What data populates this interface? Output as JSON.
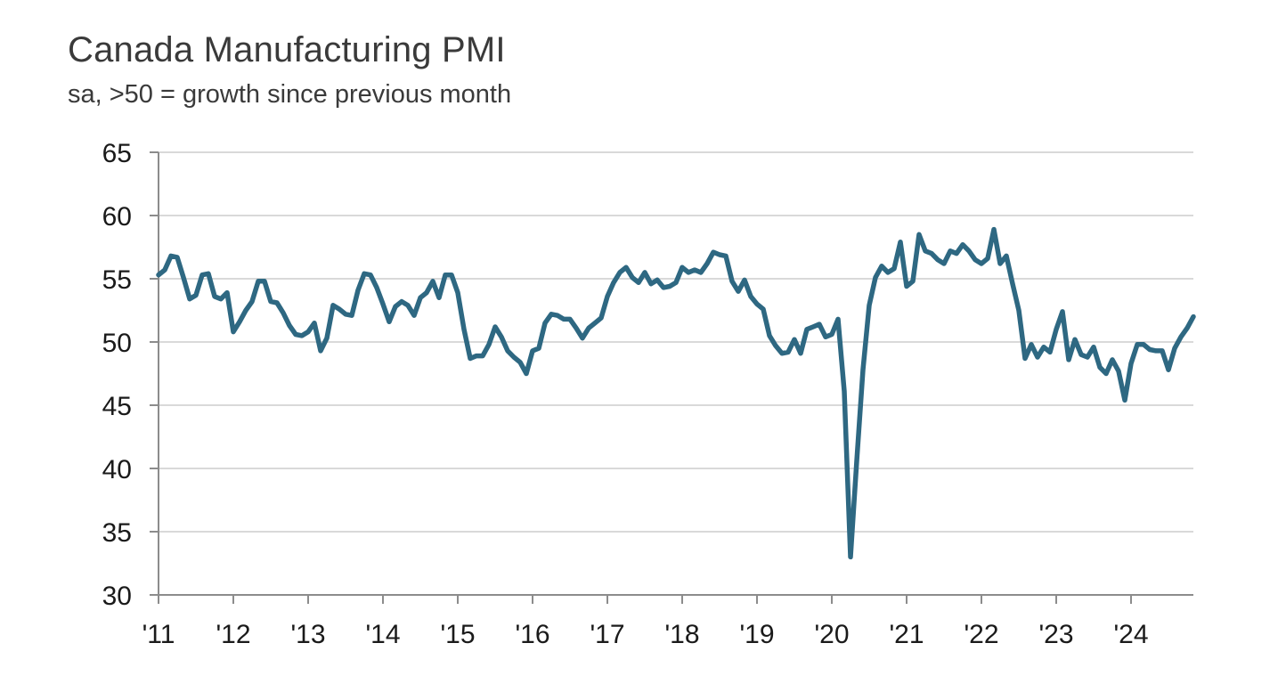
{
  "chart_data": {
    "type": "line",
    "title": "Canada Manufacturing PMI",
    "subtitle": "sa, >50 = growth since previous month",
    "xlabel": "",
    "ylabel": "",
    "ylim": [
      30,
      65
    ],
    "yticks": [
      30,
      35,
      40,
      45,
      50,
      55,
      60,
      65
    ],
    "xticks": [
      "'11",
      "'12",
      "'13",
      "'14",
      "'15",
      "'16",
      "'17",
      "'18",
      "'19",
      "'20",
      "'21",
      "'22",
      "'23",
      "'24"
    ],
    "x_start": "2011-01",
    "x_end": "2024-11",
    "grid": true,
    "colors": {
      "series": "#2e6882",
      "grid": "#d9d9d9",
      "axis": "#8c8c8c"
    },
    "series": [
      {
        "values": [
          55.3,
          55.7,
          56.8,
          56.7,
          55.1,
          53.4,
          53.7,
          55.3,
          55.4,
          53.6,
          53.4,
          53.9,
          50.8,
          51.6,
          52.5,
          53.2,
          54.8,
          54.8,
          53.2,
          53.1,
          52.3,
          51.3,
          50.6,
          50.5,
          50.8,
          51.5,
          49.3,
          50.3,
          52.9,
          52.6,
          52.2,
          52.1,
          54.1,
          55.4,
          55.3,
          54.3,
          53.0,
          51.6,
          52.8,
          53.2,
          52.9,
          52.1,
          53.5,
          53.9,
          54.8,
          53.5,
          55.3,
          55.3,
          53.9,
          51.0,
          48.7,
          48.9,
          48.9,
          49.8,
          51.2,
          50.4,
          49.3,
          48.8,
          48.4,
          47.5,
          49.3,
          49.5,
          51.5,
          52.2,
          52.1,
          51.8,
          51.8,
          51.1,
          50.3,
          51.1,
          51.5,
          51.9,
          53.6,
          54.7,
          55.5,
          55.9,
          55.1,
          54.7,
          55.5,
          54.6,
          54.9,
          54.3,
          54.4,
          54.7,
          55.9,
          55.5,
          55.7,
          55.5,
          56.2,
          57.1,
          56.9,
          56.8,
          54.8,
          54.0,
          54.9,
          53.6,
          53.0,
          52.6,
          50.5,
          49.7,
          49.1,
          49.2,
          50.2,
          49.1,
          51.0,
          51.2,
          51.4,
          50.4,
          50.6,
          51.8,
          46.1,
          33.0,
          40.6,
          47.8,
          52.9,
          55.1,
          56.0,
          55.5,
          55.8,
          57.9,
          54.4,
          54.8,
          58.5,
          57.2,
          57.0,
          56.5,
          56.2,
          57.2,
          57.0,
          57.7,
          57.2,
          56.5,
          56.2,
          56.6,
          58.9,
          56.2,
          56.8,
          54.6,
          52.5,
          48.7,
          49.8,
          48.8,
          49.6,
          49.2,
          51.0,
          52.4,
          48.6,
          50.2,
          49.0,
          48.8,
          49.6,
          48.0,
          47.5,
          48.6,
          47.7,
          45.4,
          48.3,
          49.8,
          49.8,
          49.4,
          49.3,
          49.3,
          47.8,
          49.5,
          50.4,
          51.1,
          52.0
        ]
      }
    ]
  }
}
